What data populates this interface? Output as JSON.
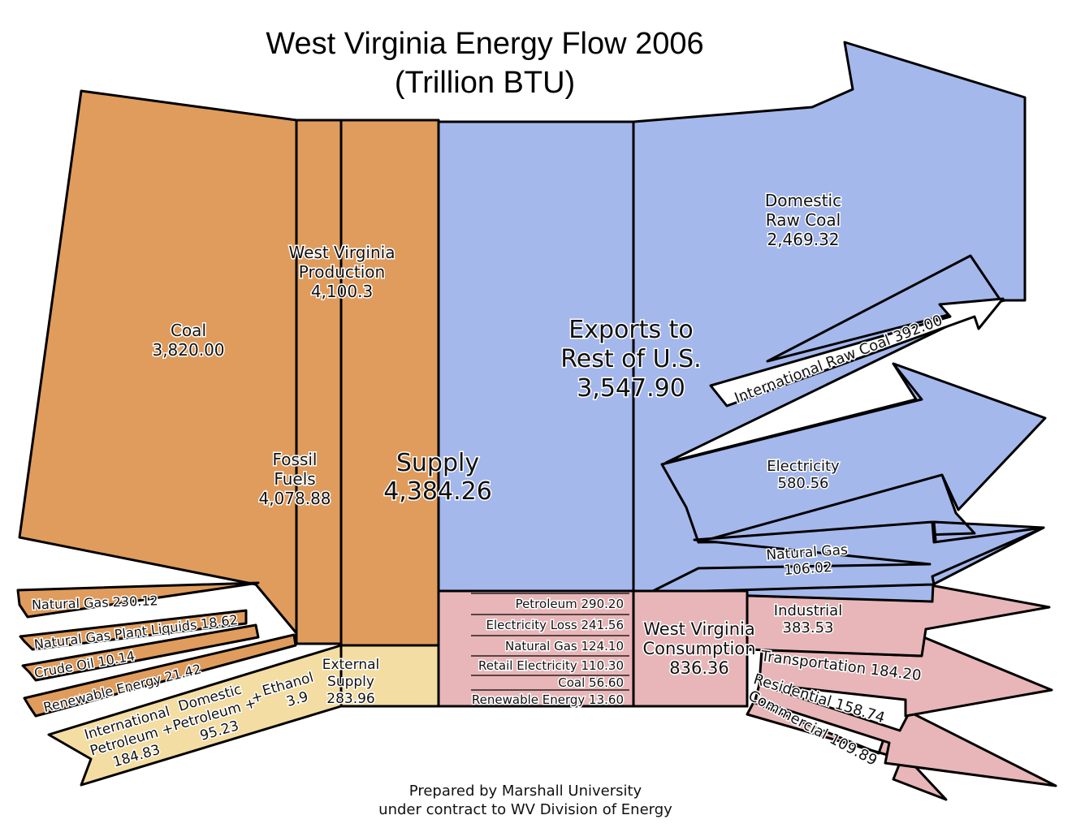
{
  "title": "West Virginia Energy Flow 2006",
  "subtitle": "(Trillion BTU)",
  "colors": {
    "production": "#e09c5c",
    "external": "#f4dda2",
    "exports": "#a5b8ec",
    "consumption": "#e8b6b8",
    "outline": "#000000"
  },
  "inputs": {
    "coal": {
      "label": "Coal",
      "value": "3,820.00"
    },
    "natural_gas": {
      "label": "Natural Gas",
      "value": "230.12"
    },
    "ngl": {
      "label": "Natural Gas Plant Liquids",
      "value": "18.62"
    },
    "crude_oil": {
      "label": "Crude Oil",
      "value": "10.14"
    },
    "renewable": {
      "label": "Renewable Energy",
      "value": "21.42"
    },
    "international_petroleum": {
      "label_1": "International",
      "label_2": "Petroleum +",
      "value": "184.83"
    },
    "domestic_petroleum": {
      "label_1": "Domestic",
      "label_2": "Petroleum +",
      "value": "95.23"
    },
    "ethanol": {
      "label": "Ethanol",
      "value": "3.9"
    }
  },
  "stages": {
    "fossil_fuels": {
      "label_1": "Fossil",
      "label_2": "Fuels",
      "value": "4,078.88"
    },
    "wv_production": {
      "label_1": "West Virginia",
      "label_2": "Production",
      "value": "4,100.3"
    },
    "external_supply": {
      "label_1": "External",
      "label_2": "Supply",
      "value": "283.96"
    },
    "supply": {
      "label": "Supply",
      "value": "4,384.26"
    },
    "exports": {
      "label_1": "Exports to",
      "label_2": "Rest of U.S.",
      "value": "3,547.90"
    },
    "wv_consumption": {
      "label_1": "West Virginia",
      "label_2": "Consumption",
      "value": "836.36"
    }
  },
  "consumption_breakdown": [
    {
      "label": "Petroleum",
      "value": "290.20"
    },
    {
      "label": "Electricity Loss",
      "value": "241.56"
    },
    {
      "label": "Natural Gas",
      "value": "124.10"
    },
    {
      "label": "Retail Electricity",
      "value": "110.30"
    },
    {
      "label": "Coal",
      "value": "56.60"
    },
    {
      "label": "Renewable Energy",
      "value": "13.60"
    }
  ],
  "exports_out": {
    "domestic_raw_coal": {
      "label_1": "Domestic",
      "label_2": "Raw Coal",
      "value": "2,469.32"
    },
    "international_raw_coal": {
      "label": "International Raw Coal",
      "value": "392.00"
    },
    "electricity": {
      "label": "Electricity",
      "value": "580.56"
    },
    "natural_gas": {
      "label": "Natural Gas",
      "value": "106.02"
    }
  },
  "sectors": {
    "industrial": {
      "label": "Industrial",
      "value": "383.53"
    },
    "transportation": {
      "label": "Transportation",
      "value": "184.20"
    },
    "residential": {
      "label": "Residential",
      "value": "158.74"
    },
    "commercial": {
      "label": "Commercial",
      "value": "109.89"
    }
  },
  "footer": {
    "line1": "Prepared by Marshall University",
    "line2": "under contract to WV Division of Energy"
  }
}
